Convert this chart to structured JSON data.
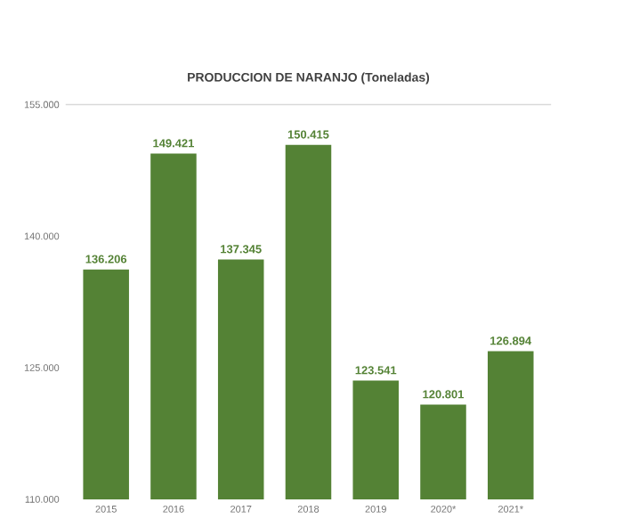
{
  "chart_data": {
    "type": "bar",
    "title": "PRODUCCION DE NARANJO (Toneladas)",
    "categories": [
      "2015",
      "2016",
      "2017",
      "2018",
      "2019",
      "2020*",
      "2021*"
    ],
    "values": [
      136206,
      149421,
      137345,
      150415,
      123541,
      120801,
      126894
    ],
    "value_labels": [
      "136.206",
      "149.421",
      "137.345",
      "150.415",
      "123.541",
      "120.801",
      "126.894"
    ],
    "color": "#548235",
    "ylim": [
      110000,
      155000
    ],
    "yticks": [
      {
        "value": 110000,
        "label": "110.000"
      },
      {
        "value": 125000,
        "label": "125.000"
      },
      {
        "value": 140000,
        "label": "140.000"
      },
      {
        "value": 155000,
        "label": "155.000"
      }
    ]
  }
}
